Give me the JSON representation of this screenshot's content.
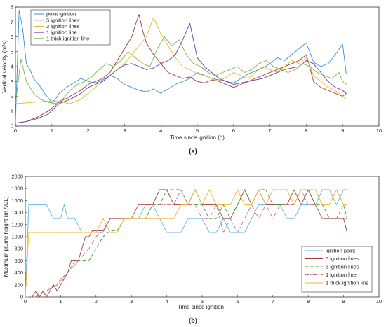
{
  "chart_data": [
    {
      "type": "line",
      "panel_label": "(a)",
      "xlabel": "Time since ignition (h)",
      "ylabel": "Vertical velocity (m/s)",
      "xlim": [
        0,
        10
      ],
      "ylim": [
        0,
        8
      ],
      "xticks": [
        0,
        1,
        2,
        3,
        4,
        5,
        6,
        7,
        8,
        9,
        10
      ],
      "yticks": [
        0,
        1,
        2,
        3,
        4,
        5,
        6,
        7,
        8
      ],
      "legend_position": "top-left",
      "series": [
        {
          "name": "point ignition",
          "color": "#3b8fd1",
          "dash": "",
          "x": [
            0,
            0.1,
            0.2,
            0.3,
            0.4,
            0.5,
            0.6,
            0.7,
            0.8,
            0.9,
            1.0,
            1.1,
            1.2,
            1.4,
            1.6,
            1.8,
            2.0,
            2.2,
            2.4,
            2.6,
            2.8,
            3.0,
            3.2,
            3.4,
            3.6,
            3.8,
            4.0,
            4.2,
            4.4,
            4.6,
            4.8,
            5.0,
            5.2,
            5.4,
            5.6,
            5.8,
            6.0,
            6.2,
            6.4,
            6.6,
            6.8,
            7.0,
            7.2,
            7.4,
            7.6,
            7.8,
            8.0,
            8.2,
            8.4,
            8.6,
            8.8,
            9.0,
            9.1
          ],
          "y": [
            0.2,
            7.8,
            6.5,
            4.2,
            3.8,
            3.2,
            2.9,
            2.6,
            2.2,
            1.9,
            1.6,
            1.8,
            2.2,
            2.6,
            2.9,
            3.2,
            3.0,
            2.9,
            3.1,
            3.4,
            3.2,
            2.8,
            2.6,
            2.4,
            2.3,
            2.5,
            2.2,
            2.5,
            2.8,
            3.0,
            3.2,
            3.6,
            3.4,
            3.2,
            3.1,
            3.0,
            2.9,
            3.2,
            3.5,
            3.7,
            3.9,
            4.2,
            4.6,
            4.4,
            4.8,
            5.2,
            5.6,
            4.3,
            4.0,
            4.2,
            4.8,
            5.5,
            3.5
          ]
        },
        {
          "name": "5 ignition lines",
          "color": "#a0393d",
          "dash": "",
          "x": [
            0,
            0.3,
            0.6,
            0.9,
            1.2,
            1.5,
            1.8,
            2.0,
            2.2,
            2.4,
            2.6,
            2.8,
            3.0,
            3.1,
            3.2,
            3.3,
            3.4,
            3.5,
            3.6,
            3.8,
            4.0,
            4.2,
            4.4,
            4.6,
            4.8,
            5.0,
            5.2,
            5.4,
            5.6,
            5.8,
            6.0,
            6.2,
            6.4,
            6.6,
            6.8,
            7.0,
            7.2,
            7.4,
            7.6,
            7.8,
            8.0,
            8.2,
            8.4,
            8.6,
            8.8,
            9.0,
            9.1
          ],
          "y": [
            0.2,
            0.3,
            0.6,
            1.0,
            1.6,
            2.0,
            2.4,
            2.8,
            3.0,
            3.2,
            3.6,
            4.4,
            5.2,
            5.6,
            6.0,
            6.8,
            7.5,
            6.4,
            5.6,
            4.8,
            4.2,
            3.6,
            3.4,
            3.2,
            3.3,
            3.0,
            2.9,
            3.1,
            3.0,
            2.8,
            2.6,
            2.8,
            3.0,
            3.2,
            3.4,
            3.6,
            3.8,
            4.0,
            4.2,
            4.4,
            4.8,
            3.0,
            2.6,
            2.4,
            2.2,
            2.0,
            2.2
          ]
        },
        {
          "name": "3 ignition lines",
          "color": "#e3b92a",
          "dash": "",
          "x": [
            0,
            0.5,
            1.0,
            1.3,
            1.5,
            1.8,
            2.0,
            2.2,
            2.4,
            2.6,
            2.8,
            3.0,
            3.2,
            3.4,
            3.6,
            3.8,
            4.0,
            4.2,
            4.4,
            4.6,
            4.8,
            5.0,
            5.2,
            5.4,
            5.6,
            5.8,
            6.0,
            6.2,
            6.4,
            6.6,
            6.8,
            7.0,
            7.2,
            7.4,
            7.6,
            7.8,
            8.0,
            8.2,
            8.4,
            8.6,
            8.8,
            9.0,
            9.1
          ],
          "y": [
            1.5,
            1.6,
            1.7,
            1.6,
            1.5,
            1.8,
            2.2,
            2.6,
            3.0,
            3.4,
            3.8,
            4.2,
            4.8,
            5.4,
            6.0,
            7.3,
            6.2,
            5.4,
            4.6,
            4.0,
            3.8,
            3.5,
            3.4,
            3.2,
            3.0,
            3.3,
            3.6,
            3.4,
            3.2,
            3.6,
            4.0,
            3.8,
            3.6,
            4.0,
            4.4,
            4.2,
            4.6,
            3.4,
            3.0,
            2.6,
            2.4,
            2.0,
            1.8
          ]
        },
        {
          "name": "1 ignition line",
          "color": "#6a3a9e",
          "dash": "",
          "x": [
            0,
            0.3,
            0.6,
            0.9,
            1.2,
            1.5,
            1.8,
            2.0,
            2.2,
            2.4,
            2.6,
            2.8,
            3.0,
            3.2,
            3.4,
            3.6,
            3.8,
            4.0,
            4.2,
            4.4,
            4.6,
            4.8,
            5.0,
            5.2,
            5.4,
            5.6,
            5.8,
            6.0,
            6.2,
            6.4,
            6.6,
            6.8,
            7.0,
            7.2,
            7.4,
            7.6,
            7.8,
            8.0,
            8.2,
            8.4,
            8.6,
            8.8,
            9.0,
            9.1
          ],
          "y": [
            0.2,
            0.3,
            0.5,
            0.8,
            1.5,
            1.8,
            2.2,
            2.6,
            2.8,
            3.0,
            3.4,
            3.8,
            4.1,
            4.2,
            4.0,
            3.8,
            3.9,
            4.2,
            4.4,
            4.8,
            5.8,
            6.9,
            4.6,
            4.0,
            3.6,
            3.2,
            3.0,
            2.8,
            2.9,
            3.0,
            3.1,
            3.2,
            3.4,
            3.6,
            3.8,
            3.9,
            4.0,
            4.4,
            4.2,
            3.6,
            3.0,
            2.6,
            2.4,
            2.2
          ]
        },
        {
          "name": "1 thick ignition line",
          "color": "#7ab648",
          "dash": "",
          "x": [
            0,
            0.15,
            0.3,
            0.5,
            0.7,
            0.9,
            1.1,
            1.3,
            1.5,
            1.7,
            1.9,
            2.1,
            2.3,
            2.5,
            2.7,
            2.9,
            3.1,
            3.3,
            3.5,
            3.7,
            3.9,
            4.1,
            4.3,
            4.5,
            4.7,
            4.9,
            5.1,
            5.3,
            5.5,
            5.7,
            5.9,
            6.1,
            6.3,
            6.5,
            6.7,
            6.9,
            7.1,
            7.3,
            7.5,
            7.7,
            7.9,
            8.1,
            8.3,
            8.5,
            8.7,
            8.9,
            9.0,
            9.1
          ],
          "y": [
            1.5,
            4.5,
            3.0,
            2.2,
            1.8,
            1.6,
            1.5,
            1.8,
            2.4,
            2.8,
            3.0,
            3.3,
            3.8,
            4.2,
            4.0,
            4.4,
            5.0,
            4.6,
            4.2,
            4.0,
            5.2,
            6.0,
            5.4,
            5.8,
            4.8,
            4.2,
            4.0,
            3.6,
            3.4,
            3.6,
            3.8,
            4.0,
            3.6,
            3.8,
            4.2,
            4.4,
            4.0,
            3.8,
            3.6,
            3.8,
            4.2,
            4.0,
            3.6,
            3.4,
            3.2,
            3.6,
            3.0,
            2.8
          ]
        }
      ]
    },
    {
      "type": "line",
      "panel_label": "(b)",
      "xlabel": "Time since ignition",
      "ylabel": "Maximum plume height (m AGL)",
      "xlim": [
        0,
        10
      ],
      "ylim": [
        0,
        2000
      ],
      "xticks": [
        0,
        1,
        2,
        3,
        4,
        5,
        6,
        7,
        8,
        9,
        10
      ],
      "yticks": [
        0,
        200,
        400,
        600,
        800,
        1000,
        1200,
        1400,
        1600,
        1800,
        2000
      ],
      "legend_position": "bottom-right",
      "series": [
        {
          "name": "ignition point",
          "color": "#5bb6e6",
          "dash": "",
          "x": [
            0,
            0.1,
            0.2,
            0.4,
            0.6,
            0.8,
            1.0,
            1.1,
            1.2,
            1.4,
            1.6,
            1.8,
            2.0,
            2.2,
            2.4,
            2.6,
            2.8,
            3.0,
            3.2,
            3.4,
            3.6,
            3.8,
            4.0,
            4.2,
            4.4,
            4.6,
            4.8,
            5.0,
            5.2,
            5.4,
            5.6,
            5.8,
            6.0,
            6.2,
            6.4,
            6.6,
            6.8,
            7.0,
            7.2,
            7.4,
            7.6,
            7.8,
            8.0,
            8.2,
            8.4,
            8.6,
            8.8,
            9.0,
            9.1
          ],
          "y": [
            0,
            1530,
            1530,
            1530,
            1530,
            1300,
            1300,
            1530,
            1300,
            1300,
            1070,
            1070,
            1070,
            1070,
            1300,
            1300,
            1300,
            1300,
            1300,
            1530,
            1530,
            1300,
            1070,
            1070,
            1070,
            1300,
            1300,
            1300,
            1070,
            1070,
            1300,
            1070,
            1070,
            1070,
            1300,
            1530,
            1530,
            1530,
            1530,
            1300,
            1300,
            1530,
            1530,
            1530,
            1780,
            1780,
            1530,
            1780,
            1780
          ]
        },
        {
          "name": "5 ignition lines",
          "color": "#a0393d",
          "dash": "",
          "x": [
            0,
            0.2,
            0.3,
            0.4,
            0.5,
            0.6,
            0.7,
            0.8,
            0.9,
            1.0,
            1.1,
            1.2,
            1.3,
            1.4,
            1.5,
            1.6,
            1.7,
            1.8,
            1.9,
            2.0,
            2.2,
            2.4,
            2.6,
            2.8,
            3.0,
            3.2,
            3.4,
            3.6,
            3.8,
            4.0,
            4.2,
            4.4,
            4.6,
            4.8,
            5.0,
            5.2,
            5.4,
            5.6,
            5.8,
            6.0,
            6.2,
            6.4,
            6.6,
            6.8,
            7.0,
            7.2,
            7.4,
            7.6,
            7.8,
            8.0,
            8.2,
            8.4,
            8.6,
            8.8,
            9.0,
            9.1
          ],
          "y": [
            0,
            0,
            100,
            0,
            100,
            0,
            100,
            200,
            100,
            200,
            300,
            400,
            600,
            600,
            600,
            800,
            1000,
            1000,
            1100,
            1100,
            1100,
            1300,
            1300,
            1300,
            1300,
            1530,
            1530,
            1530,
            1780,
            1780,
            1530,
            1530,
            1530,
            1780,
            1530,
            1530,
            1530,
            1300,
            1300,
            1530,
            1780,
            1530,
            1780,
            1530,
            1530,
            1530,
            1530,
            1780,
            1530,
            1780,
            1530,
            1300,
            1300,
            1300,
            1300,
            1070
          ]
        },
        {
          "name": "3 ignition lines",
          "color": "#3f9a2c",
          "dash": "5,3",
          "x": [
            0,
            0.3,
            0.6,
            0.9,
            1.0,
            1.2,
            1.4,
            1.6,
            1.8,
            2.0,
            2.2,
            2.4,
            2.6,
            2.8,
            3.0,
            3.2,
            3.4,
            3.6,
            3.8,
            4.0,
            4.2,
            4.4,
            4.6,
            4.8,
            5.0,
            5.2,
            5.4,
            5.6,
            5.8,
            6.0,
            6.2,
            6.4,
            6.6,
            6.8,
            7.0,
            7.2,
            7.4,
            7.6,
            7.8,
            8.0,
            8.2,
            8.4,
            8.6,
            8.8,
            9.0,
            9.1
          ],
          "y": [
            0,
            0,
            100,
            200,
            300,
            400,
            600,
            600,
            600,
            800,
            1000,
            1100,
            1100,
            1300,
            1300,
            1300,
            1300,
            1530,
            1530,
            1780,
            1780,
            1780,
            1530,
            1530,
            1530,
            1300,
            1300,
            1530,
            1300,
            1530,
            1780,
            1530,
            1780,
            1780,
            1530,
            1530,
            1530,
            1530,
            1780,
            1780,
            1530,
            1530,
            1300,
            1300,
            1530,
            1300
          ]
        },
        {
          "name": "1 ignition line",
          "color": "#c66e7a",
          "dash": "6,2,1.5,2",
          "x": [
            0,
            0.3,
            0.6,
            0.9,
            1.2,
            1.5,
            1.8,
            2.0,
            2.2,
            2.4,
            2.6,
            2.8,
            3.0,
            3.2,
            3.4,
            3.6,
            3.8,
            4.0,
            4.2,
            4.4,
            4.6,
            4.8,
            5.0,
            5.2,
            5.4,
            5.6,
            5.8,
            6.0,
            6.2,
            6.4,
            6.6,
            6.8,
            7.0,
            7.2,
            7.4,
            7.6,
            7.8,
            8.0,
            8.2,
            8.4,
            8.6,
            8.8,
            9.0,
            9.1
          ],
          "y": [
            0,
            0,
            100,
            200,
            400,
            600,
            800,
            1000,
            1100,
            1300,
            1300,
            1300,
            1300,
            1530,
            1530,
            1530,
            1530,
            1530,
            1530,
            1780,
            1530,
            1530,
            1300,
            1300,
            1530,
            1070,
            1300,
            1070,
            1300,
            1530,
            1300,
            1530,
            1300,
            1530,
            1530,
            1530,
            1780,
            1530,
            1530,
            1300,
            1300,
            1300,
            1300,
            1300
          ]
        },
        {
          "name": "1 thick ignition line",
          "color": "#f0b429",
          "dash": "",
          "x": [
            0,
            0.1,
            0.2,
            0.4,
            0.6,
            0.8,
            1.0,
            1.2,
            1.4,
            1.6,
            1.8,
            2.0,
            2.2,
            2.4,
            2.6,
            2.8,
            3.0,
            3.2,
            3.4,
            3.6,
            3.8,
            4.0,
            4.2,
            4.4,
            4.6,
            4.8,
            5.0,
            5.2,
            5.4,
            5.6,
            5.8,
            6.0,
            6.2,
            6.4,
            6.6,
            6.8,
            7.0,
            7.2,
            7.4,
            7.6,
            7.8,
            8.0,
            8.2,
            8.4,
            8.6,
            8.8,
            9.0,
            9.1
          ],
          "y": [
            0,
            1070,
            1070,
            1070,
            1070,
            1070,
            1070,
            1070,
            1070,
            1070,
            1070,
            1070,
            1300,
            1070,
            1070,
            1300,
            1300,
            1300,
            1300,
            1300,
            1300,
            1300,
            1300,
            1530,
            1530,
            1780,
            1530,
            1780,
            1530,
            1530,
            1530,
            1780,
            1530,
            1530,
            1780,
            1530,
            1780,
            1780,
            1780,
            1530,
            1780,
            1780,
            1780,
            1530,
            1530,
            1780,
            1530,
            1530
          ]
        }
      ]
    }
  ]
}
